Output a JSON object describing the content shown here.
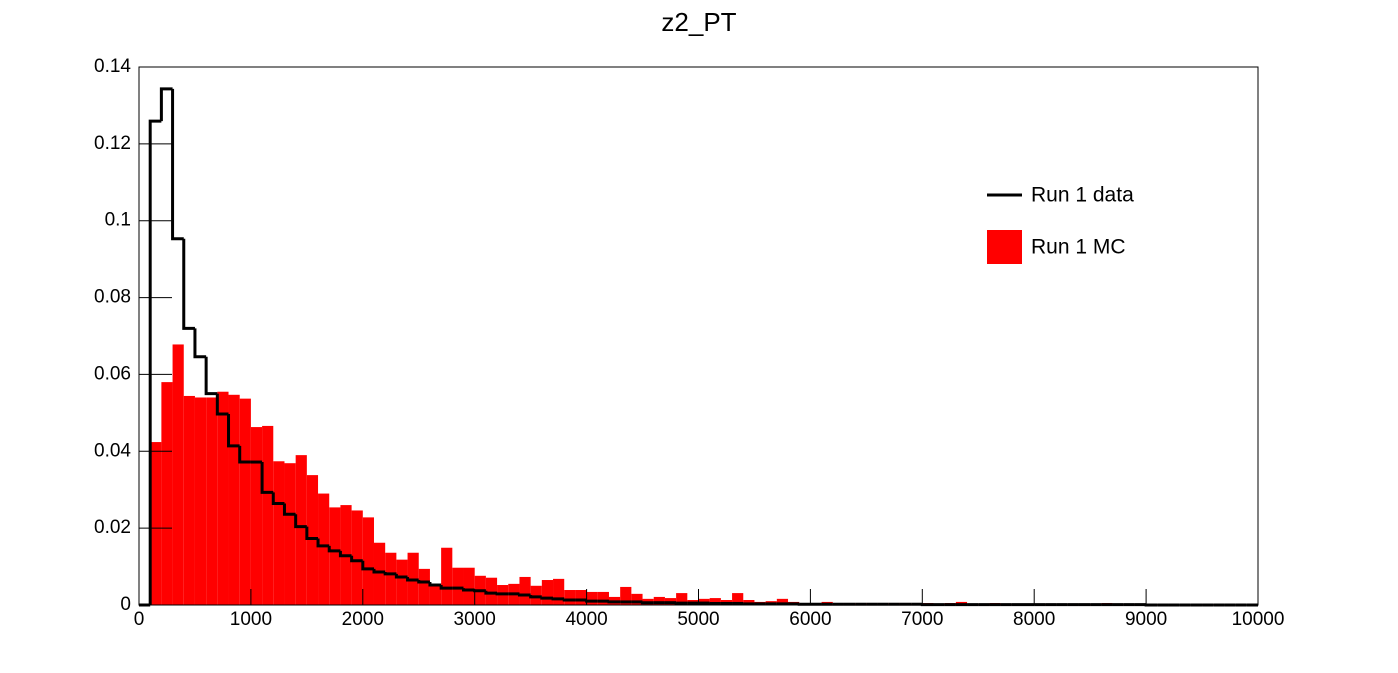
{
  "chart_data": {
    "type": "histogram",
    "title": "z2_PT",
    "bins": [
      0,
      100,
      200,
      300,
      400,
      500,
      600,
      700,
      800,
      900,
      1000,
      1100,
      1200,
      1300,
      1400,
      1500,
      1600,
      1700,
      1800,
      1900,
      2000,
      2100,
      2200,
      2300,
      2400,
      2500,
      2600,
      2700,
      2800,
      2900,
      3000,
      3100,
      3200,
      3300,
      3400,
      3500,
      3600,
      3700,
      3800,
      3900,
      4000,
      4100,
      4200,
      4300,
      4400,
      4500,
      4600,
      4700,
      4800,
      4900,
      5000,
      5100,
      5200,
      5300,
      5400,
      5500,
      5600,
      5700,
      5800,
      5900,
      6000,
      6100,
      6200,
      6300,
      6400,
      6500,
      6600,
      6700,
      6800,
      6900,
      7000,
      7100,
      7200,
      7300,
      7400,
      7500,
      7600,
      7700,
      7800,
      7900,
      8000,
      8100,
      8200,
      8300,
      8400,
      8500,
      8600,
      8700,
      8800,
      8900,
      9000,
      9100,
      9200,
      9300,
      9400,
      9500,
      9600,
      9700,
      9800,
      9900,
      10000
    ],
    "series": [
      {
        "name": "Run 1 MC",
        "color": "#ff0000",
        "style": "fill",
        "values": [
          0,
          0.0424,
          0.058,
          0.0678,
          0.0544,
          0.054,
          0.054,
          0.0555,
          0.0547,
          0.0537,
          0.0463,
          0.0466,
          0.0374,
          0.0369,
          0.039,
          0.0338,
          0.029,
          0.0254,
          0.026,
          0.0246,
          0.0228,
          0.0162,
          0.0136,
          0.0118,
          0.0136,
          0.0094,
          0.005,
          0.0149,
          0.0097,
          0.0097,
          0.0076,
          0.0071,
          0.0052,
          0.0055,
          0.0073,
          0.005,
          0.0065,
          0.0068,
          0.0039,
          0.0039,
          0.0034,
          0.0034,
          0.0021,
          0.0047,
          0.0029,
          0.0016,
          0.0021,
          0.0018,
          0.0031,
          0.0013,
          0.0016,
          0.0018,
          0.0013,
          0.0031,
          0.0013,
          0.0008,
          0.001,
          0.0016,
          0.0008,
          0.0005,
          0.0005,
          0.0008,
          0.0005,
          0.0003,
          0.0005,
          0.0005,
          0.0003,
          0.0005,
          0.0003,
          0.0003,
          0.0005,
          0.0003,
          0.0005,
          0.0008,
          0.0003,
          0.0003,
          0.0005,
          0.0003,
          0,
          0.0003,
          0.0003,
          0.0003,
          0,
          0.0003,
          0,
          0.0003,
          0.0005,
          0,
          0.0003,
          0,
          0.0003,
          0,
          0,
          0,
          0,
          0.0003,
          0,
          0,
          0,
          0
        ]
      },
      {
        "name": "Run 1 data",
        "color": "#000000",
        "style": "step",
        "values": [
          0,
          0.1259,
          0.1343,
          0.0953,
          0.072,
          0.0646,
          0.055,
          0.0497,
          0.0414,
          0.0372,
          0.0372,
          0.0293,
          0.0264,
          0.0236,
          0.0204,
          0.0173,
          0.0154,
          0.0141,
          0.0128,
          0.0115,
          0.0094,
          0.0086,
          0.0081,
          0.0073,
          0.0065,
          0.006,
          0.0052,
          0.0044,
          0.0044,
          0.0039,
          0.0037,
          0.0031,
          0.0029,
          0.0029,
          0.0026,
          0.0021,
          0.0018,
          0.0016,
          0.0013,
          0.0013,
          0.001,
          0.001,
          0.0008,
          0.0008,
          0.0008,
          0.0006,
          0.0006,
          0.0006,
          0.0005,
          0.0005,
          0.0005,
          0.0004,
          0.0004,
          0.0004,
          0.0003,
          0.0003,
          0.0003,
          0.0003,
          0.0003,
          0.0002,
          0.0002,
          0.0002,
          0.0002,
          0.0002,
          0.0002,
          0.0002,
          0.0002,
          0.0002,
          0.0002,
          0.0002,
          0.0001,
          0.0001,
          0.0001,
          0.0001,
          0.0001,
          0.0001,
          0.0001,
          0.0001,
          0.0001,
          0.0001,
          0.0001,
          0.0001,
          0.0001,
          0.0001,
          0.0001,
          0.0001,
          0.0001,
          0.0001,
          0.0001,
          0.0001,
          0,
          0,
          0,
          0,
          0,
          0,
          0,
          0,
          0,
          0
        ]
      }
    ],
    "xlim": [
      0,
      10000
    ],
    "xticks": [
      0,
      1000,
      2000,
      3000,
      4000,
      5000,
      6000,
      7000,
      8000,
      9000,
      10000
    ],
    "ylim": [
      0,
      0.14
    ],
    "yticks": [
      0,
      0.02,
      0.04,
      0.06,
      0.08,
      0.1,
      0.12,
      0.14
    ],
    "legend": "upper right"
  }
}
